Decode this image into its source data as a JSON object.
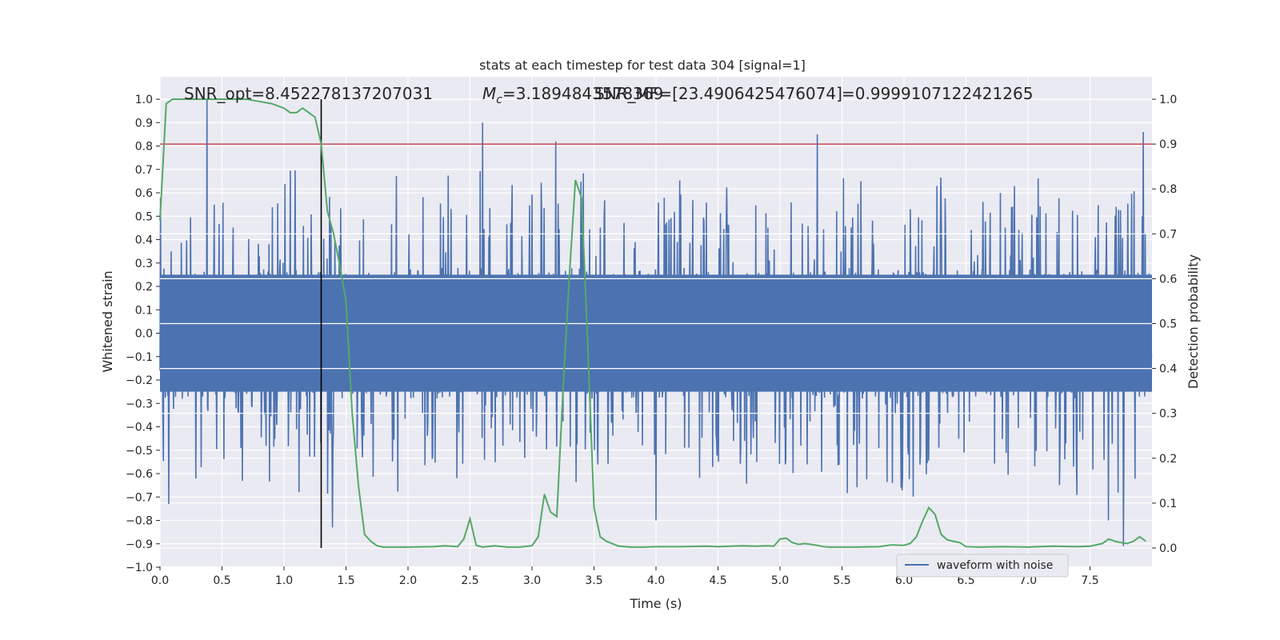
{
  "chart_data": {
    "type": "line",
    "title": "stats at each timestep for test data 304 [signal=1]",
    "xlabel": "Time (s)",
    "ylabel": "Whitened strain",
    "y2label": "Detection probability",
    "xlim": [
      0.0,
      8.0
    ],
    "ylim": [
      -1.0,
      1.0
    ],
    "y2lim": [
      -0.045,
      1.045
    ],
    "x_ticks": [
      "0.0",
      "0.5",
      "1.0",
      "1.5",
      "2.0",
      "2.5",
      "3.0",
      "3.5",
      "4.0",
      "4.5",
      "5.0",
      "5.5",
      "6.0",
      "6.5",
      "7.0",
      "7.5"
    ],
    "y_ticks": [
      "1.0",
      "0.9",
      "0.8",
      "0.7",
      "0.6",
      "0.5",
      "0.4",
      "0.3",
      "0.2",
      "0.1",
      "0.0",
      "−0.1",
      "−0.2",
      "−0.3",
      "−0.4",
      "−0.5",
      "−0.6",
      "−0.7",
      "−0.8",
      "−0.9",
      "−1.0"
    ],
    "y2_ticks": [
      "1.0",
      "0.9",
      "0.8",
      "0.7",
      "0.6",
      "0.5",
      "0.4",
      "0.3",
      "0.2",
      "0.1",
      "0.0"
    ],
    "annotations": {
      "snr_opt": "SNR_opt=8.452278137207031",
      "mc_symbol": "M",
      "mc_sub": "c",
      "mc_value": "=3.1894843578369",
      "snr_mf": "SNR_MF=[23.4906425476074]",
      "overlap": "=0.9999107122421265"
    },
    "legend": {
      "label": "waveform with noise",
      "placement": "lower-right"
    },
    "threshold": {
      "y2": 0.9
    },
    "marker_x": 1.3,
    "series": [
      {
        "name": "waveform with noise",
        "color": "#4c72b0",
        "sample_rate": 256,
        "noise_seed": 304,
        "core_amplitude": 0.25,
        "spikes": [
          {
            "x": 0.38,
            "y": 1.0
          },
          {
            "x": 1.39,
            "y": -0.83
          },
          {
            "x": 2.6,
            "y": 0.9
          },
          {
            "x": 3.19,
            "y": 0.82
          },
          {
            "x": 5.3,
            "y": 0.85
          },
          {
            "x": 7.77,
            "y": -0.91
          },
          {
            "x": 7.93,
            "y": 0.86
          },
          {
            "x": 0.07,
            "y": -0.73
          },
          {
            "x": 4.0,
            "y": -0.8
          },
          {
            "x": 7.65,
            "y": -0.8
          }
        ]
      },
      {
        "name": "detection probability",
        "color": "#55a868",
        "axis": "y2",
        "x": [
          0.0,
          0.05,
          0.1,
          0.2,
          0.3,
          0.4,
          0.5,
          0.6,
          0.7,
          0.8,
          0.9,
          1.0,
          1.05,
          1.1,
          1.15,
          1.2,
          1.25,
          1.3,
          1.35,
          1.4,
          1.45,
          1.5,
          1.55,
          1.6,
          1.65,
          1.7,
          1.75,
          1.8,
          2.0,
          2.2,
          2.3,
          2.4,
          2.45,
          2.5,
          2.55,
          2.6,
          2.7,
          2.8,
          2.9,
          3.0,
          3.05,
          3.1,
          3.15,
          3.2,
          3.25,
          3.3,
          3.35,
          3.4,
          3.45,
          3.5,
          3.55,
          3.6,
          3.7,
          3.8,
          3.9,
          4.0,
          4.2,
          4.4,
          4.5,
          4.6,
          4.7,
          4.8,
          4.9,
          4.95,
          5.0,
          5.05,
          5.1,
          5.15,
          5.2,
          5.3,
          5.35,
          5.4,
          5.6,
          5.8,
          5.9,
          6.0,
          6.05,
          6.1,
          6.15,
          6.2,
          6.25,
          6.3,
          6.35,
          6.4,
          6.45,
          6.5,
          6.6,
          6.8,
          7.0,
          7.2,
          7.4,
          7.5,
          7.6,
          7.65,
          7.7,
          7.75,
          7.8,
          7.85,
          7.9,
          7.95
        ],
        "y": [
          0.73,
          0.99,
          1.0,
          1.0,
          1.0,
          1.0,
          1.0,
          1.0,
          1.0,
          0.995,
          0.99,
          0.98,
          0.97,
          0.97,
          0.98,
          0.97,
          0.96,
          0.9,
          0.75,
          0.7,
          0.63,
          0.55,
          0.3,
          0.14,
          0.03,
          0.015,
          0.005,
          0.002,
          0.002,
          0.003,
          0.005,
          0.003,
          0.02,
          0.065,
          0.006,
          0.002,
          0.005,
          0.002,
          0.002,
          0.005,
          0.025,
          0.12,
          0.08,
          0.07,
          0.35,
          0.6,
          0.82,
          0.78,
          0.45,
          0.09,
          0.025,
          0.015,
          0.004,
          0.002,
          0.002,
          0.003,
          0.003,
          0.004,
          0.003,
          0.004,
          0.005,
          0.004,
          0.005,
          0.004,
          0.02,
          0.022,
          0.012,
          0.008,
          0.01,
          0.006,
          0.003,
          0.002,
          0.002,
          0.003,
          0.007,
          0.006,
          0.01,
          0.025,
          0.06,
          0.09,
          0.075,
          0.03,
          0.018,
          0.015,
          0.012,
          0.003,
          0.002,
          0.003,
          0.002,
          0.004,
          0.003,
          0.004,
          0.01,
          0.02,
          0.015,
          0.012,
          0.01,
          0.015,
          0.025,
          0.015
        ]
      }
    ]
  }
}
